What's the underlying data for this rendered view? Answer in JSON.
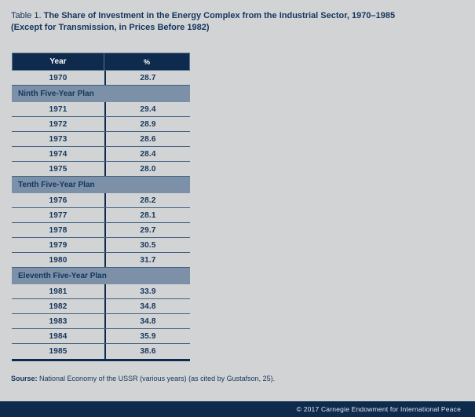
{
  "title": {
    "label": "Table 1.",
    "line1": "The Share of Investment in the Energy Complex from the Industrial Sector, 1970–1985",
    "line2": "(Except for Transmission, in Prices Before 1982)"
  },
  "table": {
    "header": {
      "year": "Year",
      "percent": "%"
    },
    "rows": [
      {
        "type": "data",
        "year": "1970",
        "percent": "28.7"
      },
      {
        "type": "section",
        "label": "Ninth Five-Year Plan"
      },
      {
        "type": "data",
        "year": "1971",
        "percent": "29.4"
      },
      {
        "type": "data",
        "year": "1972",
        "percent": "28.9"
      },
      {
        "type": "data",
        "year": "1973",
        "percent": "28.6"
      },
      {
        "type": "data",
        "year": "1974",
        "percent": "28.4"
      },
      {
        "type": "data",
        "year": "1975",
        "percent": "28.0"
      },
      {
        "type": "section",
        "label": "Tenth Five-Year Plan"
      },
      {
        "type": "data",
        "year": "1976",
        "percent": "28.2"
      },
      {
        "type": "data",
        "year": "1977",
        "percent": "28.1"
      },
      {
        "type": "data",
        "year": "1978",
        "percent": "29.7"
      },
      {
        "type": "data",
        "year": "1979",
        "percent": "30.5"
      },
      {
        "type": "data",
        "year": "1980",
        "percent": "31.7"
      },
      {
        "type": "section",
        "label": "Eleventh Five-Year Plan"
      },
      {
        "type": "data",
        "year": "1981",
        "percent": "33.9"
      },
      {
        "type": "data",
        "year": "1982",
        "percent": "34.8"
      },
      {
        "type": "data",
        "year": "1983",
        "percent": "34.8"
      },
      {
        "type": "data",
        "year": "1984",
        "percent": "35.9"
      },
      {
        "type": "data",
        "year": "1985",
        "percent": "38.6"
      }
    ]
  },
  "source": {
    "label": "Sourse:",
    "text": "National Economy of the USSR (various years) (as cited by Gustafson, 25)."
  },
  "footer": {
    "copyright": "© 2017 Carnegie Endowment for International Peace"
  },
  "colors": {
    "navy": "#0E2A4D",
    "band_blue": "#7C90A7",
    "page_background": "#D2D3D4",
    "row_line": "#3E6284",
    "text_navy": "#12365E",
    "footer_text": "#E2E7EE"
  }
}
